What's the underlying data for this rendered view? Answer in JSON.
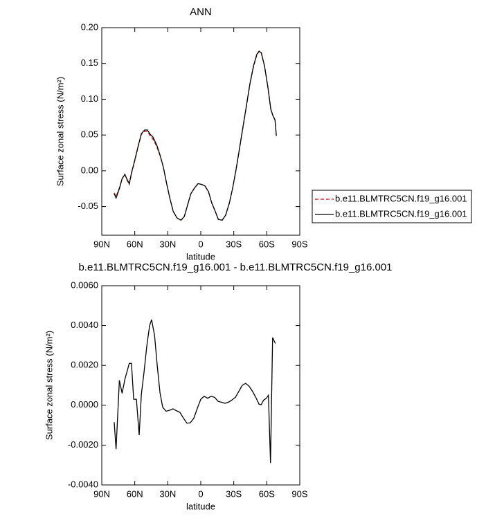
{
  "chart_data": [
    {
      "type": "line",
      "title": "ANN",
      "xlabel": "latitude",
      "ylabel": "Surface zonal stress (N/m²)",
      "x": [
        78.7,
        77,
        74,
        71.5,
        69,
        67.3,
        65,
        63,
        60,
        57,
        54,
        51,
        48.5,
        46,
        43.4,
        40,
        37,
        34,
        31,
        28,
        25,
        21.5,
        18,
        15,
        12,
        9,
        5.7,
        2.5,
        -0.6,
        -3.7,
        -7,
        -10,
        -13,
        -16,
        -19.5,
        -22.6,
        -26,
        -29,
        -32,
        -35,
        -38,
        -41.5,
        -44.7,
        -48,
        -51,
        -53,
        -55,
        -58,
        -61,
        -63.7,
        -65.6,
        -67.5,
        -68.7
      ],
      "series": [
        {
          "name": "b.e11.BLMTRC5CN.f19_g16.001",
          "color": "#cc0000",
          "dash": true,
          "values": [
            -0.031,
            -0.036,
            -0.024,
            -0.011,
            -0.005,
            -0.012,
            -0.019,
            -0.004,
            0.014,
            0.033,
            0.051,
            0.055,
            0.055,
            0.049,
            0.044,
            0.034,
            0.021,
            0.005,
            -0.018,
            -0.039,
            -0.057,
            -0.066,
            -0.069,
            -0.064,
            -0.048,
            -0.032,
            -0.024,
            -0.018,
            -0.019,
            -0.021,
            -0.029,
            -0.045,
            -0.056,
            -0.068,
            -0.069,
            -0.062,
            -0.045,
            -0.024,
            0.001,
            0.029,
            0.057,
            0.09,
            0.121,
            0.146,
            0.162,
            0.167,
            0.165,
            0.146,
            0.117,
            0.086,
            0.077,
            0.071,
            0.049
          ]
        },
        {
          "name": "b.e11.BLMTRC5CN.f19_g16.001",
          "color": "#000000",
          "dash": false,
          "values": [
            -0.032,
            -0.038,
            -0.025,
            -0.011,
            -0.005,
            -0.011,
            -0.018,
            -0.003,
            0.015,
            0.034,
            0.052,
            0.057,
            0.057,
            0.051,
            0.047,
            0.036,
            0.022,
            0.005,
            -0.018,
            -0.039,
            -0.057,
            -0.066,
            -0.069,
            -0.064,
            -0.048,
            -0.032,
            -0.024,
            -0.018,
            -0.019,
            -0.021,
            -0.029,
            -0.045,
            -0.056,
            -0.068,
            -0.069,
            -0.062,
            -0.045,
            -0.024,
            0.001,
            0.029,
            0.058,
            0.091,
            0.122,
            0.147,
            0.163,
            0.167,
            0.165,
            0.146,
            0.117,
            0.086,
            0.077,
            0.071,
            0.049
          ]
        }
      ],
      "xlim": [
        90,
        -90
      ],
      "xticks": [
        {
          "value": 90,
          "label": "90N"
        },
        {
          "value": 60,
          "label": "60N"
        },
        {
          "value": 30,
          "label": "30N"
        },
        0,
        {
          "value": -30,
          "label": "30S"
        },
        {
          "value": -60,
          "label": "60S"
        },
        {
          "value": -90,
          "label": "90S"
        }
      ],
      "ylim": [
        -0.09,
        0.2
      ],
      "yticks": [
        {
          "value": 0.2,
          "label": "0.20"
        },
        0.15,
        {
          "value": 0.1,
          "label": "0.10"
        },
        0.05,
        {
          "value": 0,
          "label": "0.00"
        },
        -0.05
      ],
      "legend": "right"
    },
    {
      "type": "line",
      "title": "b.e11.BLMTRC5CN.f19_g16.001 - b.e11.BLMTRC5CN.f19_g16.001",
      "xlabel": "latitude",
      "ylabel": "Surface zonal stress (N/m²)",
      "x": [
        78.7,
        77,
        74,
        71.5,
        69,
        65,
        63,
        61,
        58.5,
        56,
        54,
        51.7,
        49,
        46.5,
        44.7,
        42,
        39.6,
        37,
        34.6,
        31.5,
        28.3,
        25.2,
        22,
        19,
        15.7,
        12.6,
        9.5,
        6.3,
        3.1,
        0,
        -3.1,
        -6.3,
        -9.4,
        -12.6,
        -15.7,
        -18.9,
        -22,
        -25,
        -28,
        -31.5,
        -34.6,
        -37.7,
        -40.8,
        -44,
        -47,
        -50,
        -53,
        -55,
        -57,
        -59.6,
        -61.5,
        -63.4,
        -65.3,
        -67.8
      ],
      "values": [
        -0.00085,
        -0.0022,
        0.00125,
        0.0006,
        0.0013,
        0.0021,
        0.0021,
        0.0003,
        0.0003,
        -0.0015,
        0.00055,
        0.0016,
        0.003,
        0.004,
        0.0043,
        0.0035,
        0.002,
        0.0006,
        -0.0001,
        -0.0003,
        -0.00025,
        -0.00018,
        -0.00028,
        -0.00035,
        -0.00065,
        -0.0009,
        -0.00088,
        -0.00065,
        -0.00015,
        0.0003,
        0.00045,
        0.00035,
        0.00045,
        0.0004,
        0.0002,
        0.00015,
        0.0001,
        0.00015,
        0.00025,
        0.0004,
        0.0007,
        0.001,
        0.0011,
        0.00095,
        0.0007,
        0.0004,
        5e-05,
        3e-05,
        0.00025,
        0.00035,
        0.0005,
        -0.0029,
        0.0034,
        0.0031
      ],
      "color": "#000000",
      "xlim": [
        90,
        -90
      ],
      "xticks": [
        {
          "value": 90,
          "label": "90N"
        },
        {
          "value": 60,
          "label": "60N"
        },
        {
          "value": 30,
          "label": "30N"
        },
        0,
        {
          "value": -30,
          "label": "30S"
        },
        {
          "value": -60,
          "label": "60S"
        },
        {
          "value": -90,
          "label": "90S"
        }
      ],
      "ylim": [
        -0.004,
        0.006
      ],
      "yticks": [
        {
          "value": 0.006,
          "label": "0.0060"
        },
        {
          "value": 0.004,
          "label": "0.0040"
        },
        {
          "value": 0.002,
          "label": "0.0020"
        },
        {
          "value": 0,
          "label": "0.0000"
        },
        {
          "value": -0.002,
          "label": "-0.0020"
        },
        {
          "value": -0.004,
          "label": "-0.0040"
        }
      ]
    }
  ]
}
